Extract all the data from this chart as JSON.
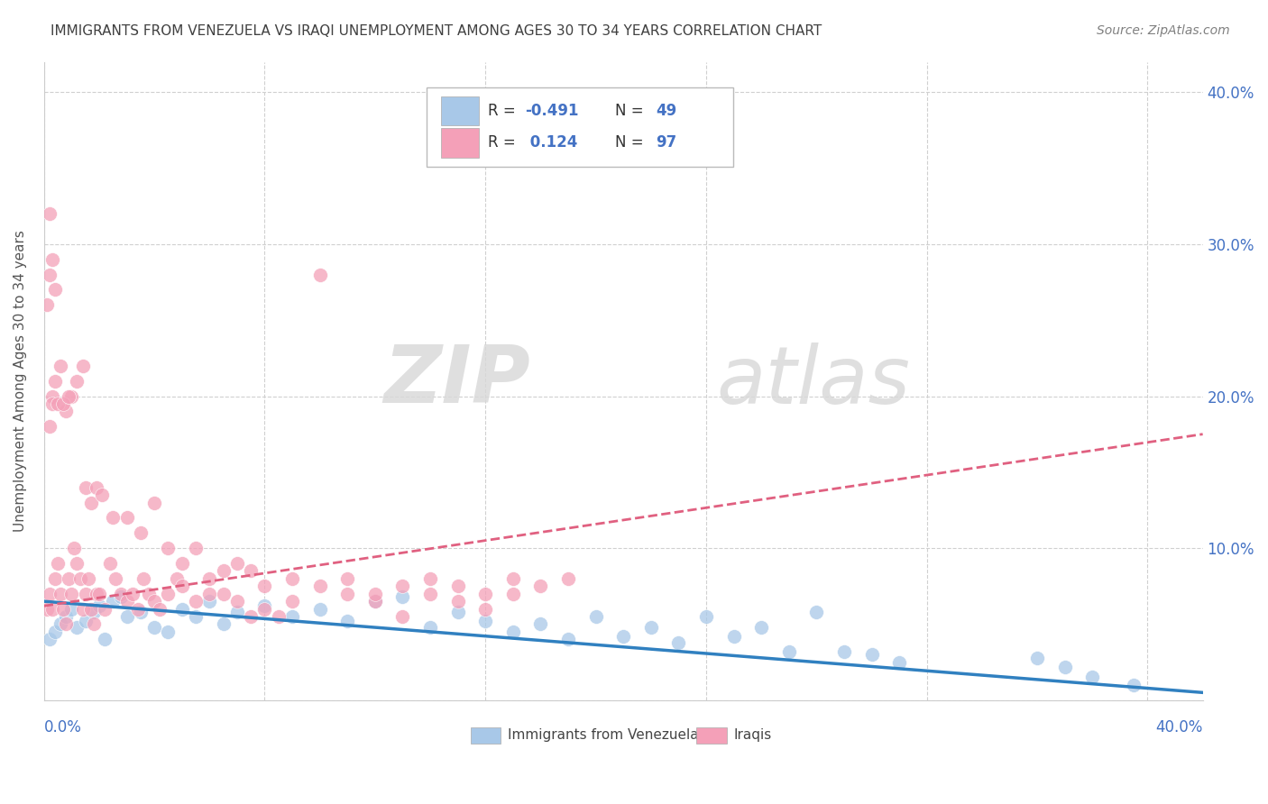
{
  "title": "IMMIGRANTS FROM VENEZUELA VS IRAQI UNEMPLOYMENT AMONG AGES 30 TO 34 YEARS CORRELATION CHART",
  "source": "Source: ZipAtlas.com",
  "ylabel": "Unemployment Among Ages 30 to 34 years",
  "watermark_zip": "ZIP",
  "watermark_atlas": "atlas",
  "ylim": [
    0.0,
    0.42
  ],
  "xlim": [
    0.0,
    0.42
  ],
  "legend_label1": "Immigrants from Venezuela",
  "legend_label2": "Iraqis",
  "blue_color": "#a8c8e8",
  "pink_color": "#f4a0b8",
  "blue_line_color": "#3080c0",
  "pink_line_color": "#e06080",
  "title_color": "#404040",
  "source_color": "#808080",
  "axis_label_color": "#4472C4",
  "r_value_color": "#4472C4",
  "blue_trend_x0": 0.0,
  "blue_trend_y0": 0.065,
  "blue_trend_x1": 0.42,
  "blue_trend_y1": 0.005,
  "pink_trend_x0": 0.0,
  "pink_trend_y0": 0.062,
  "pink_trend_x1": 0.42,
  "pink_trend_y1": 0.175,
  "blue_scatter": [
    [
      0.002,
      0.04
    ],
    [
      0.004,
      0.045
    ],
    [
      0.006,
      0.05
    ],
    [
      0.008,
      0.055
    ],
    [
      0.01,
      0.06
    ],
    [
      0.012,
      0.048
    ],
    [
      0.015,
      0.052
    ],
    [
      0.018,
      0.058
    ],
    [
      0.02,
      0.062
    ],
    [
      0.022,
      0.04
    ],
    [
      0.025,
      0.065
    ],
    [
      0.028,
      0.068
    ],
    [
      0.03,
      0.055
    ],
    [
      0.035,
      0.058
    ],
    [
      0.04,
      0.048
    ],
    [
      0.045,
      0.045
    ],
    [
      0.05,
      0.06
    ],
    [
      0.055,
      0.055
    ],
    [
      0.06,
      0.065
    ],
    [
      0.065,
      0.05
    ],
    [
      0.07,
      0.058
    ],
    [
      0.08,
      0.062
    ],
    [
      0.09,
      0.055
    ],
    [
      0.1,
      0.06
    ],
    [
      0.11,
      0.052
    ],
    [
      0.12,
      0.065
    ],
    [
      0.13,
      0.068
    ],
    [
      0.14,
      0.048
    ],
    [
      0.15,
      0.058
    ],
    [
      0.16,
      0.052
    ],
    [
      0.17,
      0.045
    ],
    [
      0.18,
      0.05
    ],
    [
      0.19,
      0.04
    ],
    [
      0.2,
      0.055
    ],
    [
      0.21,
      0.042
    ],
    [
      0.22,
      0.048
    ],
    [
      0.23,
      0.038
    ],
    [
      0.24,
      0.055
    ],
    [
      0.25,
      0.042
    ],
    [
      0.26,
      0.048
    ],
    [
      0.27,
      0.032
    ],
    [
      0.28,
      0.058
    ],
    [
      0.29,
      0.032
    ],
    [
      0.3,
      0.03
    ],
    [
      0.31,
      0.025
    ],
    [
      0.36,
      0.028
    ],
    [
      0.37,
      0.022
    ],
    [
      0.38,
      0.015
    ],
    [
      0.395,
      0.01
    ]
  ],
  "pink_scatter": [
    [
      0.001,
      0.06
    ],
    [
      0.002,
      0.07
    ],
    [
      0.003,
      0.06
    ],
    [
      0.004,
      0.08
    ],
    [
      0.005,
      0.09
    ],
    [
      0.006,
      0.07
    ],
    [
      0.007,
      0.06
    ],
    [
      0.008,
      0.05
    ],
    [
      0.009,
      0.08
    ],
    [
      0.01,
      0.07
    ],
    [
      0.011,
      0.1
    ],
    [
      0.012,
      0.09
    ],
    [
      0.013,
      0.08
    ],
    [
      0.014,
      0.06
    ],
    [
      0.015,
      0.07
    ],
    [
      0.016,
      0.08
    ],
    [
      0.017,
      0.06
    ],
    [
      0.018,
      0.05
    ],
    [
      0.019,
      0.07
    ],
    [
      0.02,
      0.07
    ],
    [
      0.022,
      0.06
    ],
    [
      0.024,
      0.09
    ],
    [
      0.026,
      0.08
    ],
    [
      0.028,
      0.07
    ],
    [
      0.03,
      0.065
    ],
    [
      0.032,
      0.07
    ],
    [
      0.034,
      0.06
    ],
    [
      0.036,
      0.08
    ],
    [
      0.038,
      0.07
    ],
    [
      0.04,
      0.065
    ],
    [
      0.042,
      0.06
    ],
    [
      0.045,
      0.07
    ],
    [
      0.048,
      0.08
    ],
    [
      0.05,
      0.075
    ],
    [
      0.055,
      0.065
    ],
    [
      0.06,
      0.07
    ],
    [
      0.065,
      0.07
    ],
    [
      0.07,
      0.065
    ],
    [
      0.075,
      0.055
    ],
    [
      0.08,
      0.06
    ],
    [
      0.085,
      0.055
    ],
    [
      0.09,
      0.065
    ],
    [
      0.1,
      0.28
    ],
    [
      0.11,
      0.07
    ],
    [
      0.12,
      0.065
    ],
    [
      0.13,
      0.055
    ],
    [
      0.14,
      0.08
    ],
    [
      0.15,
      0.065
    ],
    [
      0.16,
      0.06
    ],
    [
      0.17,
      0.07
    ],
    [
      0.002,
      0.18
    ],
    [
      0.003,
      0.2
    ],
    [
      0.004,
      0.21
    ],
    [
      0.006,
      0.22
    ],
    [
      0.008,
      0.19
    ],
    [
      0.01,
      0.2
    ],
    [
      0.012,
      0.21
    ],
    [
      0.014,
      0.22
    ],
    [
      0.001,
      0.26
    ],
    [
      0.002,
      0.28
    ],
    [
      0.003,
      0.29
    ],
    [
      0.004,
      0.27
    ],
    [
      0.002,
      0.32
    ],
    [
      0.003,
      0.195
    ],
    [
      0.005,
      0.195
    ],
    [
      0.007,
      0.195
    ],
    [
      0.009,
      0.2
    ],
    [
      0.015,
      0.14
    ],
    [
      0.017,
      0.13
    ],
    [
      0.019,
      0.14
    ],
    [
      0.021,
      0.135
    ],
    [
      0.025,
      0.12
    ],
    [
      0.03,
      0.12
    ],
    [
      0.035,
      0.11
    ],
    [
      0.04,
      0.13
    ],
    [
      0.045,
      0.1
    ],
    [
      0.05,
      0.09
    ],
    [
      0.055,
      0.1
    ],
    [
      0.06,
      0.08
    ],
    [
      0.065,
      0.085
    ],
    [
      0.07,
      0.09
    ],
    [
      0.075,
      0.085
    ],
    [
      0.08,
      0.075
    ],
    [
      0.09,
      0.08
    ],
    [
      0.1,
      0.075
    ],
    [
      0.11,
      0.08
    ],
    [
      0.12,
      0.07
    ],
    [
      0.13,
      0.075
    ],
    [
      0.14,
      0.07
    ],
    [
      0.15,
      0.075
    ],
    [
      0.16,
      0.07
    ],
    [
      0.17,
      0.08
    ],
    [
      0.18,
      0.075
    ],
    [
      0.19,
      0.08
    ]
  ]
}
